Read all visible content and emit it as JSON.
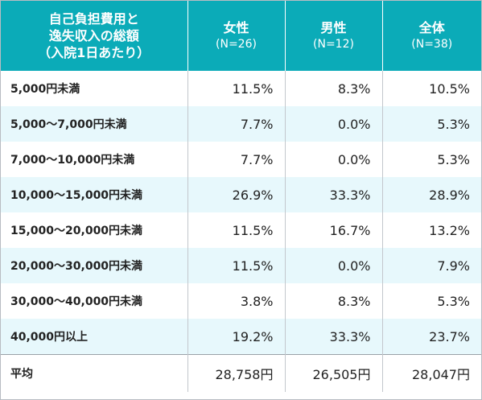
{
  "header": {
    "label_lines": [
      "自己負担費用と",
      "逸失収入の総額",
      "（入院1日あたり）"
    ],
    "columns": [
      {
        "name": "女性",
        "n": "(N=26)"
      },
      {
        "name": "男性",
        "n": "(N=12)"
      },
      {
        "name": "全体",
        "n": "(N=38)"
      }
    ]
  },
  "rows": [
    {
      "label": "5,000円未満",
      "female": "11.5%",
      "male": "8.3%",
      "total": "10.5%"
    },
    {
      "label": "5,000～7,000円未満",
      "female": "7.7%",
      "male": "0.0%",
      "total": "5.3%"
    },
    {
      "label": "7,000～10,000円未満",
      "female": "7.7%",
      "male": "0.0%",
      "total": "5.3%"
    },
    {
      "label": "10,000～15,000円未満",
      "female": "26.9%",
      "male": "33.3%",
      "total": "28.9%"
    },
    {
      "label": "15,000～20,000円未満",
      "female": "11.5%",
      "male": "16.7%",
      "total": "13.2%"
    },
    {
      "label": "20,000～30,000円未満",
      "female": "11.5%",
      "male": "0.0%",
      "total": "7.9%"
    },
    {
      "label": "30,000～40,000円未満",
      "female": "3.8%",
      "male": "8.3%",
      "total": "5.3%"
    },
    {
      "label": "40,000円以上",
      "female": "19.2%",
      "male": "33.3%",
      "total": "23.7%"
    }
  ],
  "average": {
    "label": "平均",
    "female": "28,758円",
    "male": "26,505円",
    "total": "28,047円"
  },
  "colors": {
    "header": "#0babb8",
    "stripe": "#e7f8fc"
  }
}
